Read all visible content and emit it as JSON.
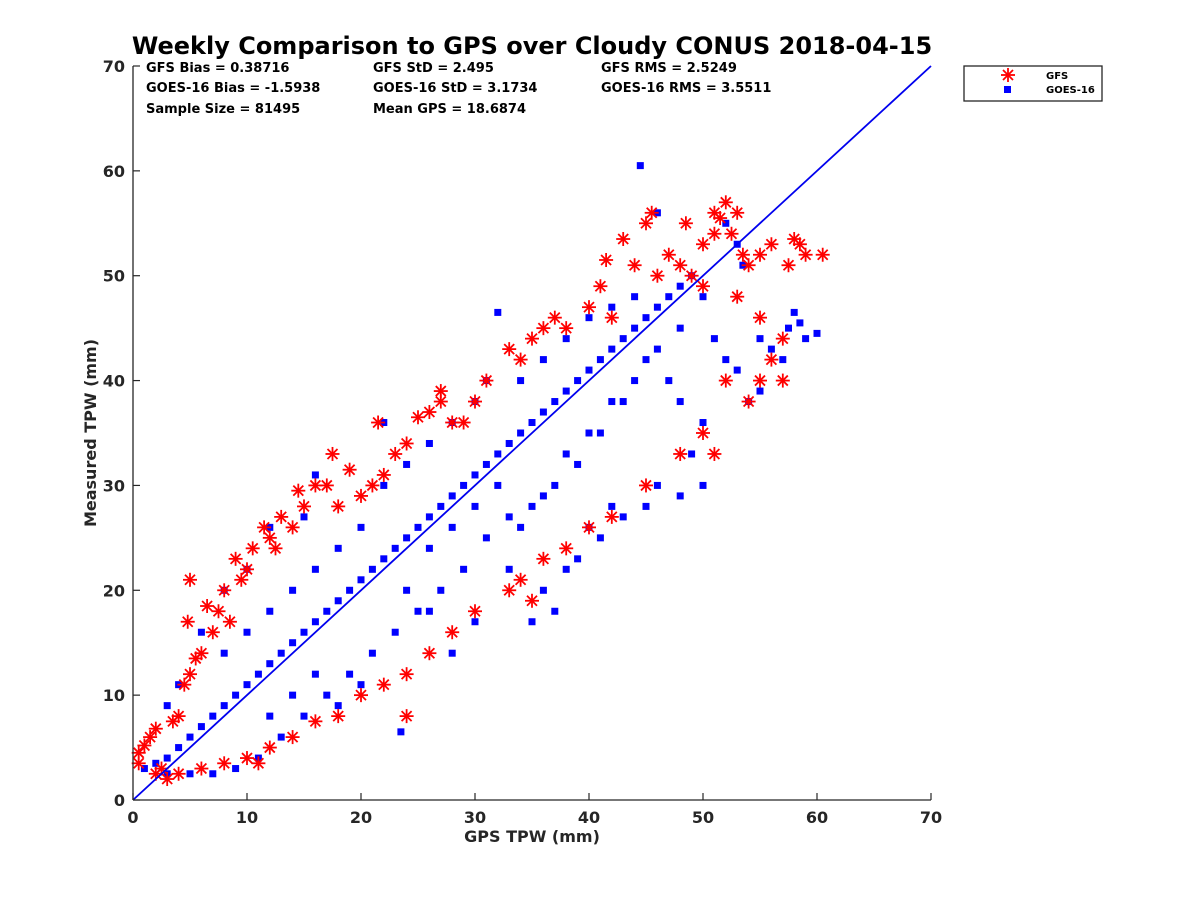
{
  "chart_data": {
    "type": "scatter",
    "title": "Weekly Comparison to GPS over Cloudy CONUS 2018-04-15",
    "xlabel": "GPS TPW (mm)",
    "ylabel": "Measured TPW (mm)",
    "xlim": [
      0,
      70
    ],
    "ylim": [
      0,
      70
    ],
    "xticks": [
      0,
      10,
      20,
      30,
      40,
      50,
      60,
      70
    ],
    "yticks": [
      0,
      10,
      20,
      30,
      40,
      50,
      60,
      70
    ],
    "grid": false,
    "legend_position": "outside top-right",
    "stats": {
      "gfs_bias": "GFS Bias = 0.38716",
      "goes_bias": "GOES-16 Bias = -1.5938",
      "sample_size": "Sample Size = 81495",
      "gfs_std": "GFS StD = 2.495",
      "goes_std": "GOES-16 StD = 3.1734",
      "mean_gps": "Mean GPS = 18.6874",
      "gfs_rms": "GFS RMS = 2.5249",
      "goes_rms": "GOES-16 RMS = 3.5511"
    },
    "reference_line": {
      "x": [
        0,
        70
      ],
      "y": [
        0,
        70
      ],
      "color": "#0000ee"
    },
    "series": [
      {
        "name": "GFS",
        "marker": "asterisk",
        "color": "#ff0000",
        "points": [
          [
            0.5,
            4.5
          ],
          [
            1,
            5.2
          ],
          [
            1.5,
            6
          ],
          [
            2,
            6.8
          ],
          [
            2.5,
            3
          ],
          [
            3,
            2
          ],
          [
            3.5,
            7.5
          ],
          [
            4,
            8
          ],
          [
            4.5,
            11
          ],
          [
            5,
            12
          ],
          [
            5,
            21
          ],
          [
            4.8,
            17
          ],
          [
            5.5,
            13.5
          ],
          [
            6,
            14
          ],
          [
            6.5,
            18.5
          ],
          [
            7,
            16
          ],
          [
            7.5,
            18
          ],
          [
            8,
            20
          ],
          [
            8.5,
            17
          ],
          [
            9,
            23
          ],
          [
            9.5,
            21
          ],
          [
            10,
            22
          ],
          [
            10.5,
            24
          ],
          [
            11,
            3.5
          ],
          [
            11.5,
            26
          ],
          [
            12,
            25
          ],
          [
            12.5,
            24
          ],
          [
            13,
            27
          ],
          [
            14,
            26
          ],
          [
            14.5,
            29.5
          ],
          [
            15,
            28
          ],
          [
            16,
            30
          ],
          [
            17,
            30
          ],
          [
            17.5,
            33
          ],
          [
            18,
            28
          ],
          [
            19,
            31.5
          ],
          [
            20,
            29
          ],
          [
            21,
            30
          ],
          [
            21.5,
            36
          ],
          [
            22,
            31
          ],
          [
            23,
            33
          ],
          [
            24,
            34
          ],
          [
            24,
            8
          ],
          [
            25,
            36.5
          ],
          [
            26,
            37
          ],
          [
            27,
            38
          ],
          [
            27,
            39
          ],
          [
            28,
            36
          ],
          [
            29,
            36
          ],
          [
            30,
            38
          ],
          [
            31,
            40
          ],
          [
            33,
            43
          ],
          [
            34,
            42
          ],
          [
            35,
            44
          ],
          [
            36,
            45
          ],
          [
            37,
            46
          ],
          [
            38,
            45
          ],
          [
            40,
            47
          ],
          [
            41,
            49
          ],
          [
            41.5,
            51.5
          ],
          [
            42,
            46
          ],
          [
            43,
            53.5
          ],
          [
            44,
            51
          ],
          [
            45,
            55
          ],
          [
            45.5,
            56
          ],
          [
            46,
            50
          ],
          [
            47,
            52
          ],
          [
            48,
            51
          ],
          [
            48.5,
            55
          ],
          [
            49,
            50
          ],
          [
            50,
            53
          ],
          [
            50,
            49
          ],
          [
            51,
            56
          ],
          [
            51,
            54
          ],
          [
            51.5,
            55.5
          ],
          [
            52,
            57
          ],
          [
            52.5,
            54
          ],
          [
            53,
            56
          ],
          [
            53,
            48
          ],
          [
            53.5,
            52
          ],
          [
            54,
            51
          ],
          [
            55,
            52
          ],
          [
            55,
            46
          ],
          [
            56,
            53
          ],
          [
            56,
            42
          ],
          [
            57,
            44
          ],
          [
            57,
            40
          ],
          [
            57.5,
            51
          ],
          [
            58,
            53.5
          ],
          [
            58.5,
            53
          ],
          [
            59,
            52
          ],
          [
            60.5,
            52
          ],
          [
            55,
            40
          ],
          [
            54,
            38
          ],
          [
            52,
            40
          ],
          [
            51,
            33
          ],
          [
            50,
            35
          ],
          [
            48,
            33
          ],
          [
            45,
            30
          ],
          [
            42,
            27
          ],
          [
            40,
            26
          ],
          [
            38,
            24
          ],
          [
            36,
            23
          ],
          [
            35,
            19
          ],
          [
            34,
            21
          ],
          [
            33,
            20
          ],
          [
            30,
            18
          ],
          [
            28,
            16
          ],
          [
            26,
            14
          ],
          [
            24,
            12
          ],
          [
            22,
            11
          ],
          [
            20,
            10
          ],
          [
            18,
            8
          ],
          [
            16,
            7.5
          ],
          [
            14,
            6
          ],
          [
            12,
            5
          ],
          [
            10,
            4
          ],
          [
            8,
            3.5
          ],
          [
            6,
            3
          ],
          [
            4,
            2.5
          ],
          [
            2,
            2.5
          ],
          [
            0.5,
            3.5
          ]
        ]
      },
      {
        "name": "GOES-16",
        "marker": "square",
        "color": "#0000ff",
        "points": [
          [
            1,
            3
          ],
          [
            2,
            3.5
          ],
          [
            3,
            4
          ],
          [
            4,
            5
          ],
          [
            5,
            6
          ],
          [
            6,
            7
          ],
          [
            7,
            8
          ],
          [
            8,
            9
          ],
          [
            9,
            10
          ],
          [
            10,
            11
          ],
          [
            11,
            12
          ],
          [
            12,
            13
          ],
          [
            13,
            14
          ],
          [
            14,
            15
          ],
          [
            15,
            16
          ],
          [
            16,
            17
          ],
          [
            17,
            18
          ],
          [
            18,
            19
          ],
          [
            19,
            20
          ],
          [
            20,
            21
          ],
          [
            21,
            22
          ],
          [
            22,
            23
          ],
          [
            23,
            24
          ],
          [
            24,
            25
          ],
          [
            25,
            26
          ],
          [
            26,
            27
          ],
          [
            27,
            28
          ],
          [
            28,
            29
          ],
          [
            29,
            30
          ],
          [
            30,
            31
          ],
          [
            31,
            32
          ],
          [
            32,
            33
          ],
          [
            33,
            34
          ],
          [
            34,
            35
          ],
          [
            35,
            36
          ],
          [
            36,
            37
          ],
          [
            37,
            38
          ],
          [
            38,
            39
          ],
          [
            39,
            40
          ],
          [
            40,
            41
          ],
          [
            41,
            42
          ],
          [
            42,
            43
          ],
          [
            43,
            44
          ],
          [
            44,
            45
          ],
          [
            45,
            46
          ],
          [
            46,
            47
          ],
          [
            47,
            48
          ],
          [
            48,
            49
          ],
          [
            49,
            50
          ],
          [
            44.5,
            60.5
          ],
          [
            46,
            56
          ],
          [
            52,
            55
          ],
          [
            53,
            53
          ],
          [
            53.5,
            51
          ],
          [
            50,
            48
          ],
          [
            51,
            44
          ],
          [
            52,
            42
          ],
          [
            53,
            41
          ],
          [
            55,
            44
          ],
          [
            56,
            43
          ],
          [
            57,
            42
          ],
          [
            57.5,
            45
          ],
          [
            58,
            46.5
          ],
          [
            58.5,
            45.5
          ],
          [
            59,
            44
          ],
          [
            60,
            44.5
          ],
          [
            55,
            39
          ],
          [
            54,
            38
          ],
          [
            32,
            46.5
          ],
          [
            31,
            40
          ],
          [
            22,
            36
          ],
          [
            16,
            31
          ],
          [
            15,
            27
          ],
          [
            12,
            26
          ],
          [
            10,
            22
          ],
          [
            8,
            20
          ],
          [
            6,
            16
          ],
          [
            4,
            11
          ],
          [
            3,
            9
          ],
          [
            23.5,
            6.5
          ],
          [
            35,
            17
          ],
          [
            36,
            20
          ],
          [
            37,
            18
          ],
          [
            38,
            22
          ],
          [
            39,
            23
          ],
          [
            40,
            26
          ],
          [
            41,
            25
          ],
          [
            42,
            28
          ],
          [
            43,
            27
          ],
          [
            45,
            28
          ],
          [
            46,
            30
          ],
          [
            48,
            29
          ],
          [
            50,
            30
          ],
          [
            49,
            33
          ],
          [
            50,
            36
          ],
          [
            48,
            38
          ],
          [
            47,
            40
          ],
          [
            45,
            42
          ],
          [
            43,
            38
          ],
          [
            41,
            35
          ],
          [
            39,
            32
          ],
          [
            37,
            30
          ],
          [
            35,
            28
          ],
          [
            33,
            27
          ],
          [
            31,
            25
          ],
          [
            29,
            22
          ],
          [
            27,
            20
          ],
          [
            25,
            18
          ],
          [
            23,
            16
          ],
          [
            21,
            14
          ],
          [
            19,
            12
          ],
          [
            17,
            10
          ],
          [
            15,
            8
          ],
          [
            13,
            6
          ],
          [
            11,
            4
          ],
          [
            9,
            3
          ],
          [
            7,
            2.5
          ],
          [
            5,
            2.5
          ],
          [
            3,
            2.5
          ],
          [
            26,
            18
          ],
          [
            28,
            14
          ],
          [
            30,
            17
          ],
          [
            33,
            22
          ],
          [
            34,
            26
          ],
          [
            36,
            29
          ],
          [
            38,
            33
          ],
          [
            40,
            35
          ],
          [
            42,
            38
          ],
          [
            44,
            40
          ],
          [
            46,
            43
          ],
          [
            48,
            45
          ],
          [
            20,
            11
          ],
          [
            18,
            9
          ],
          [
            16,
            12
          ],
          [
            14,
            10
          ],
          [
            12,
            8
          ],
          [
            24,
            20
          ],
          [
            26,
            24
          ],
          [
            28,
            26
          ],
          [
            30,
            28
          ],
          [
            32,
            30
          ],
          [
            20,
            26
          ],
          [
            18,
            24
          ],
          [
            16,
            22
          ],
          [
            14,
            20
          ],
          [
            12,
            18
          ],
          [
            10,
            16
          ],
          [
            8,
            14
          ],
          [
            22,
            30
          ],
          [
            24,
            32
          ],
          [
            26,
            34
          ],
          [
            28,
            36
          ],
          [
            30,
            38
          ],
          [
            34,
            40
          ],
          [
            36,
            42
          ],
          [
            38,
            44
          ],
          [
            40,
            46
          ],
          [
            42,
            47
          ],
          [
            44,
            48
          ]
        ]
      }
    ]
  },
  "legend": {
    "items": [
      {
        "label": "GFS"
      },
      {
        "label": "GOES-16"
      }
    ]
  }
}
